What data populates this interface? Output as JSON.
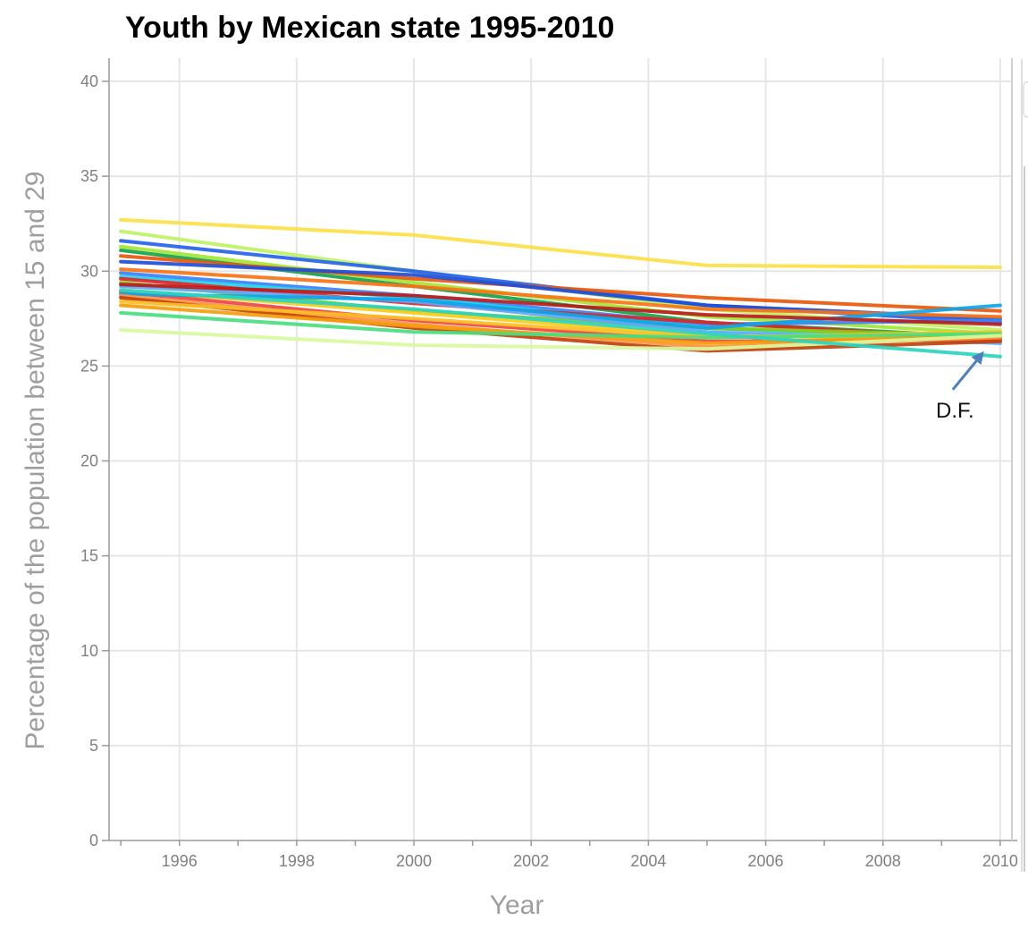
{
  "chart_data": {
    "type": "line",
    "title": "Youth by Mexican state 1995-2010",
    "xlabel": "Year",
    "ylabel": "Percentage of the population between 15 and 29",
    "xlim": [
      1994.8,
      2010.2
    ],
    "ylim": [
      0,
      40
    ],
    "x_ticks": [
      1996,
      1998,
      2000,
      2002,
      2004,
      2006,
      2008,
      2010
    ],
    "y_ticks": [
      0,
      5,
      10,
      15,
      20,
      25,
      30,
      35,
      40
    ],
    "grid": true,
    "x": [
      1995,
      2000,
      2005,
      2010
    ],
    "series": [
      {
        "color": "#fde047",
        "values": [
          32.7,
          31.9,
          30.3,
          30.2
        ]
      },
      {
        "color": "#bef264",
        "values": [
          32.1,
          30.0,
          28.0,
          26.9
        ]
      },
      {
        "color": "#2563eb",
        "values": [
          31.6,
          30.0,
          28.2,
          27.3
        ]
      },
      {
        "color": "#a3e635",
        "values": [
          31.3,
          29.4,
          27.6,
          26.7
        ]
      },
      {
        "color": "#16a34a",
        "values": [
          31.1,
          29.2,
          27.3,
          26.5
        ]
      },
      {
        "color": "#ea580c",
        "values": [
          30.8,
          29.6,
          28.6,
          27.9
        ]
      },
      {
        "color": "#1d4ed8",
        "values": [
          30.5,
          29.8,
          28.2,
          27.5
        ]
      },
      {
        "color": "#f97316",
        "values": [
          30.1,
          29.2,
          28.0,
          27.6
        ]
      },
      {
        "color": "#3b82f6",
        "values": [
          29.9,
          28.7,
          27.2,
          27.4
        ]
      },
      {
        "color": "#22d3ee",
        "values": [
          29.7,
          28.6,
          27.0,
          26.3
        ]
      },
      {
        "color": "#dc2626",
        "values": [
          29.6,
          28.3,
          27.3,
          26.4
        ]
      },
      {
        "color": "#84cc16",
        "values": [
          29.4,
          27.9,
          27.0,
          26.6
        ]
      },
      {
        "color": "#60a5fa",
        "values": [
          29.2,
          28.4,
          26.8,
          26.2
        ]
      },
      {
        "color": "#facc15",
        "values": [
          29.0,
          27.8,
          26.6,
          26.4
        ]
      },
      {
        "color": "#ef4444",
        "values": [
          28.9,
          27.4,
          26.3,
          26.4
        ]
      },
      {
        "color": "#0ea5e9",
        "values": [
          28.8,
          28.5,
          27.0,
          28.2
        ]
      },
      {
        "color": "#fb923c",
        "values": [
          28.7,
          27.2,
          26.0,
          26.5
        ]
      },
      {
        "color": "#c2410c",
        "values": [
          28.6,
          27.0,
          25.8,
          26.3
        ]
      },
      {
        "color": "#fbbf24",
        "values": [
          28.4,
          27.5,
          26.5,
          26.8
        ]
      },
      {
        "color": "#f59e0b",
        "values": [
          28.2,
          27.1,
          26.2,
          26.6
        ]
      },
      {
        "color": "#4ade80",
        "values": [
          27.8,
          26.8,
          26.5,
          26.7
        ]
      },
      {
        "color": "#d9f99d",
        "values": [
          26.9,
          26.1,
          25.9,
          26.6
        ]
      },
      {
        "color": "#2dd4bf",
        "values": [
          29.0,
          28.0,
          26.7,
          25.5
        ]
      },
      {
        "color": "#b91c1c",
        "values": [
          29.3,
          28.7,
          27.7,
          27.2
        ]
      }
    ],
    "annotations": [
      {
        "text": "D.F.",
        "x": 2010,
        "y": 25.5
      }
    ]
  }
}
